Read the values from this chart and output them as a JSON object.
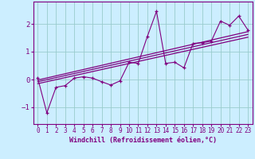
{
  "title": "",
  "xlabel": "Windchill (Refroidissement éolien,°C)",
  "ylabel": "",
  "bg_color": "#cceeff",
  "line_color": "#800080",
  "grid_color": "#99cccc",
  "xlim": [
    -0.5,
    23.5
  ],
  "ylim": [
    -1.6,
    2.8
  ],
  "yticks": [
    -1,
    0,
    1,
    2
  ],
  "xticks": [
    0,
    1,
    2,
    3,
    4,
    5,
    6,
    7,
    8,
    9,
    10,
    11,
    12,
    13,
    14,
    15,
    16,
    17,
    18,
    19,
    20,
    21,
    22,
    23
  ],
  "series": [
    [
      0,
      0.05
    ],
    [
      1,
      -1.2
    ],
    [
      2,
      -0.28
    ],
    [
      3,
      -0.22
    ],
    [
      4,
      0.05
    ],
    [
      5,
      0.1
    ],
    [
      6,
      0.05
    ],
    [
      7,
      -0.08
    ],
    [
      8,
      -0.2
    ],
    [
      9,
      -0.05
    ],
    [
      10,
      0.62
    ],
    [
      11,
      0.58
    ],
    [
      12,
      1.55
    ],
    [
      13,
      2.45
    ],
    [
      14,
      0.58
    ],
    [
      15,
      0.62
    ],
    [
      16,
      0.42
    ],
    [
      17,
      1.3
    ],
    [
      18,
      1.32
    ],
    [
      19,
      1.38
    ],
    [
      20,
      2.1
    ],
    [
      21,
      1.95
    ],
    [
      22,
      2.28
    ],
    [
      23,
      1.78
    ]
  ],
  "regression_lines": [
    {
      "x": [
        0,
        23
      ],
      "y": [
        -0.02,
        1.72
      ]
    },
    {
      "x": [
        0,
        23
      ],
      "y": [
        -0.08,
        1.62
      ]
    },
    {
      "x": [
        0,
        23
      ],
      "y": [
        -0.15,
        1.52
      ]
    }
  ]
}
